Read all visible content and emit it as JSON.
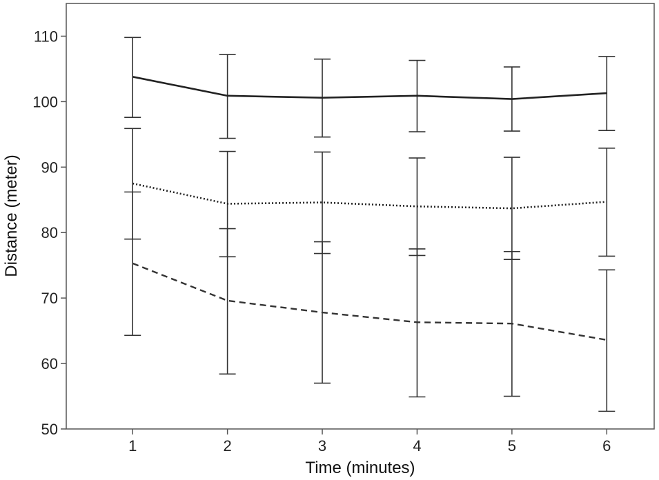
{
  "chart_data": {
    "type": "line",
    "title": "",
    "xlabel": "Time (minutes)",
    "ylabel": "Distance (meter)",
    "x": [
      1,
      2,
      3,
      4,
      5,
      6
    ],
    "x_tick_labels": [
      "1",
      "2",
      "3",
      "4",
      "5",
      "6"
    ],
    "y_ticks": [
      50,
      60,
      70,
      80,
      90,
      100,
      110
    ],
    "y_tick_labels": [
      "50",
      "60",
      "70",
      "80",
      "90",
      "100",
      "110"
    ],
    "xlim": [
      0.3,
      6.5
    ],
    "ylim": [
      50,
      115
    ],
    "grid": false,
    "legend": "none",
    "series": [
      {
        "style": "solid",
        "color": "#222222",
        "values": [
          103.8,
          100.9,
          100.6,
          100.9,
          100.4,
          101.3
        ],
        "err_low": [
          97.6,
          94.4,
          94.6,
          95.4,
          95.5,
          95.6
        ],
        "err_high": [
          109.8,
          107.2,
          106.5,
          106.3,
          105.3,
          106.9
        ]
      },
      {
        "style": "dotted",
        "color": "#222222",
        "values": [
          87.5,
          84.4,
          84.6,
          84.0,
          83.7,
          84.7
        ],
        "err_low": [
          79.0,
          76.3,
          76.8,
          76.5,
          75.9,
          76.4
        ],
        "err_high": [
          95.9,
          92.4,
          92.3,
          91.4,
          91.5,
          92.9
        ]
      },
      {
        "style": "dashed",
        "color": "#333333",
        "values": [
          75.3,
          69.6,
          67.8,
          66.3,
          66.1,
          63.6
        ],
        "err_low": [
          64.3,
          58.4,
          57.0,
          54.9,
          55.0,
          52.7
        ],
        "err_high": [
          86.2,
          80.6,
          78.6,
          77.5,
          77.1,
          74.3
        ]
      }
    ]
  }
}
